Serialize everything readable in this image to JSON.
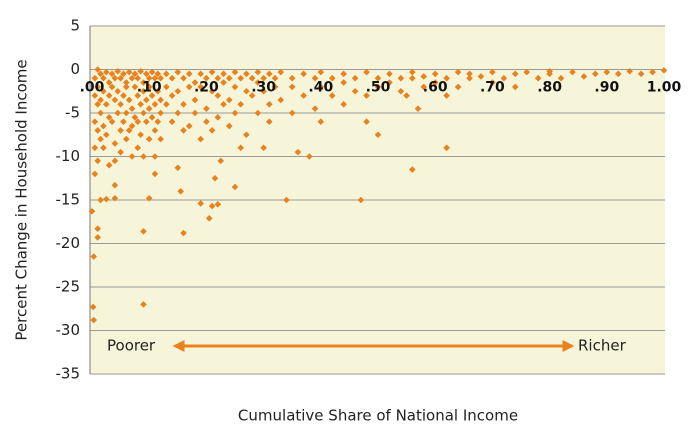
{
  "chart_data": {
    "type": "scatter",
    "xlabel": "Cumulative Share of National Income",
    "ylabel": "Percent Change in Household Income",
    "annotations": [
      "Poorer",
      "Richer"
    ],
    "color": "#e8821e",
    "background": "#f7f5d9",
    "grid": true,
    "xlim": [
      0,
      1
    ],
    "ylim": [
      -35,
      5
    ],
    "yticks": [
      -35,
      -30,
      -25,
      -20,
      -15,
      -10,
      -5,
      0,
      5
    ],
    "xticks": [
      {
        "value": 0,
        "label": ".00"
      },
      {
        "value": 0.1,
        "label": ".10"
      },
      {
        "value": 0.2,
        "label": ".20"
      },
      {
        "value": 0.3,
        "label": ".30"
      },
      {
        "value": 0.4,
        "label": ".40"
      },
      {
        "value": 0.5,
        "label": ".50"
      },
      {
        "value": 0.6,
        "label": ".60"
      },
      {
        "value": 0.7,
        "label": ".70"
      },
      {
        "value": 0.8,
        "label": ".80"
      },
      {
        "value": 0.9,
        "label": ".90"
      },
      {
        "value": 1,
        "label": "1.00"
      }
    ],
    "x": [
      0.005,
      0.005,
      0.005,
      0.005,
      0.005,
      0.01,
      0.01,
      0.01,
      0.01,
      0.01,
      0.015,
      0.015,
      0.015,
      0.015,
      0.02,
      0.02,
      0.02,
      0.02,
      0.025,
      0.025,
      0.025,
      0.03,
      0.03,
      0.03,
      0.03,
      0.035,
      0.035,
      0.035,
      0.04,
      0.04,
      0.04,
      0.04,
      0.045,
      0.045,
      0.045,
      0.05,
      0.05,
      0.05,
      0.05,
      0.055,
      0.055,
      0.055,
      0.06,
      0.06,
      0.06,
      0.06,
      0.065,
      0.065,
      0.065,
      0.07,
      0.07,
      0.07,
      0.07,
      0.075,
      0.075,
      0.075,
      0.08,
      0.08,
      0.08,
      0.08,
      0.085,
      0.085,
      0.085,
      0.09,
      0.09,
      0.09,
      0.09,
      0.095,
      0.095,
      0.095,
      0.1,
      0.1,
      0.1,
      0.1,
      0.105,
      0.105,
      0.105,
      0.11,
      0.11,
      0.11,
      0.115,
      0.115,
      0.115,
      0.12,
      0.12,
      0.12,
      0.13,
      0.13,
      0.13,
      0.14,
      0.14,
      0.14,
      0.15,
      0.15,
      0.15,
      0.16,
      0.16,
      0.16,
      0.17,
      0.17,
      0.17,
      0.18,
      0.18,
      0.18,
      0.19,
      0.19,
      0.19,
      0.2,
      0.2,
      0.2,
      0.21,
      0.21,
      0.21,
      0.22,
      0.22,
      0.22,
      0.23,
      0.23,
      0.23,
      0.24,
      0.24,
      0.24,
      0.25,
      0.25,
      0.25,
      0.26,
      0.26,
      0.27,
      0.27,
      0.27,
      0.28,
      0.28,
      0.29,
      0.29,
      0.29,
      0.3,
      0.3,
      0.31,
      0.31,
      0.31,
      0.32,
      0.32,
      0.33,
      0.33,
      0.35,
      0.35,
      0.35,
      0.37,
      0.37,
      0.39,
      0.39,
      0.4,
      0.4,
      0.4,
      0.42,
      0.42,
      0.44,
      0.44,
      0.44,
      0.46,
      0.46,
      0.48,
      0.48,
      0.5,
      0.5,
      0.52,
      0.52,
      0.54,
      0.54,
      0.56,
      0.56,
      0.58,
      0.58,
      0.6,
      0.6,
      0.62,
      0.62,
      0.64,
      0.64,
      0.66,
      0.66,
      0.68,
      0.7,
      0.7,
      0.72,
      0.74,
      0.74,
      0.76,
      0.78,
      0.8,
      0.8,
      0.82,
      0.84,
      0.86,
      0.88,
      0.9,
      0.92,
      0.94,
      0.96,
      0.98,
      1.0,
      0.0,
      0.003,
      0.002,
      0.003,
      0.01,
      0.01,
      0.015,
      0.025,
      0.04,
      0.04,
      0.09,
      0.09,
      0.1,
      0.11,
      0.12,
      0.11,
      0.15,
      0.155,
      0.16,
      0.19,
      0.21,
      0.22,
      0.205,
      0.215,
      0.225,
      0.25,
      0.26,
      0.3,
      0.34,
      0.36,
      0.38,
      0.47,
      0.48,
      0.5,
      0.56,
      0.62,
      0.55,
      0.57
    ],
    "values": [
      -1,
      -3,
      -6,
      -9,
      -12,
      0,
      -2,
      -4,
      -7,
      -10.5,
      -0.5,
      -3.5,
      -5,
      -8,
      -1,
      -2.5,
      -6.5,
      -9,
      -0.3,
      -4,
      -7.5,
      -1.5,
      -3,
      -5.5,
      -11,
      -0.5,
      -2,
      -6,
      -1,
      -3.5,
      -8.5,
      -10.5,
      -0.2,
      -2.5,
      -5,
      -1,
      -4,
      -7,
      -9.5,
      -0.5,
      -3,
      -6,
      -1.5,
      -2,
      -5,
      -8,
      -0.3,
      -3.5,
      -7,
      -1,
      -4.5,
      -6.5,
      -10,
      -0.5,
      -2,
      -5.5,
      -1,
      -3,
      -6,
      -9,
      -0.2,
      -4,
      -7.5,
      -1.5,
      -2.5,
      -5,
      -10,
      -0.5,
      -3.5,
      -6,
      -1,
      -2,
      -4.5,
      -8,
      -0.3,
      -3,
      -5.5,
      -1,
      -4,
      -7,
      -0.5,
      -2.5,
      -6,
      -1,
      -3.5,
      -5,
      -0.5,
      -2,
      -4,
      -1,
      -3,
      -6,
      -0.3,
      -2.5,
      -5,
      -1,
      -4,
      -7,
      -0.5,
      -2,
      -6.5,
      -1.5,
      -3.5,
      -5,
      -0.5,
      -2,
      -8,
      -1,
      -4.5,
      -6,
      -0.3,
      -2.5,
      -7,
      -1,
      -3,
      -5.5,
      -0.5,
      -1.5,
      -4,
      -1,
      -3.5,
      -6.5,
      -0.3,
      -2,
      -5,
      -1,
      -4,
      -0.5,
      -2.5,
      -7.5,
      -1,
      -3,
      -0.3,
      -1.5,
      -5,
      -1,
      -2.5,
      -0.5,
      -4,
      -6,
      -1,
      -2,
      -0.3,
      -3.5,
      -1,
      -2,
      -5,
      -0.5,
      -3,
      -1,
      -4.5,
      -0.3,
      -2,
      -6,
      -1,
      -3,
      -0.5,
      -1.5,
      -4,
      -1,
      -2.5,
      -0.3,
      -3,
      -1,
      -2,
      -0.5,
      -1.5,
      -1,
      -2.5,
      -0.3,
      -1,
      -0.8,
      -2,
      -0.5,
      -1.5,
      -1,
      -3,
      -0.3,
      -2,
      -1,
      -0.5,
      -0.8,
      -0.3,
      -1.5,
      -1,
      -0.5,
      -2,
      -0.3,
      -1,
      -0.5,
      -0.2,
      -1,
      -0.3,
      -0.8,
      -0.5,
      -0.3,
      -0.5,
      -0.2,
      -0.5,
      -0.3,
      -0.1,
      -16.3,
      -21.5,
      -27.3,
      -28.8,
      -18.3,
      -19.3,
      -15,
      -14.9,
      -14.8,
      -13.3,
      -18.6,
      -27,
      -14.8,
      -10,
      -8,
      -12,
      -11.3,
      -14,
      -18.8,
      -15.4,
      -15.7,
      -15.5,
      -17.1,
      -12.5,
      -10.5,
      -13.5,
      -9,
      -9,
      -15,
      -9.5,
      -10,
      -15,
      -6,
      -7.5,
      -11.5,
      -9,
      -3,
      -4.5
    ]
  }
}
